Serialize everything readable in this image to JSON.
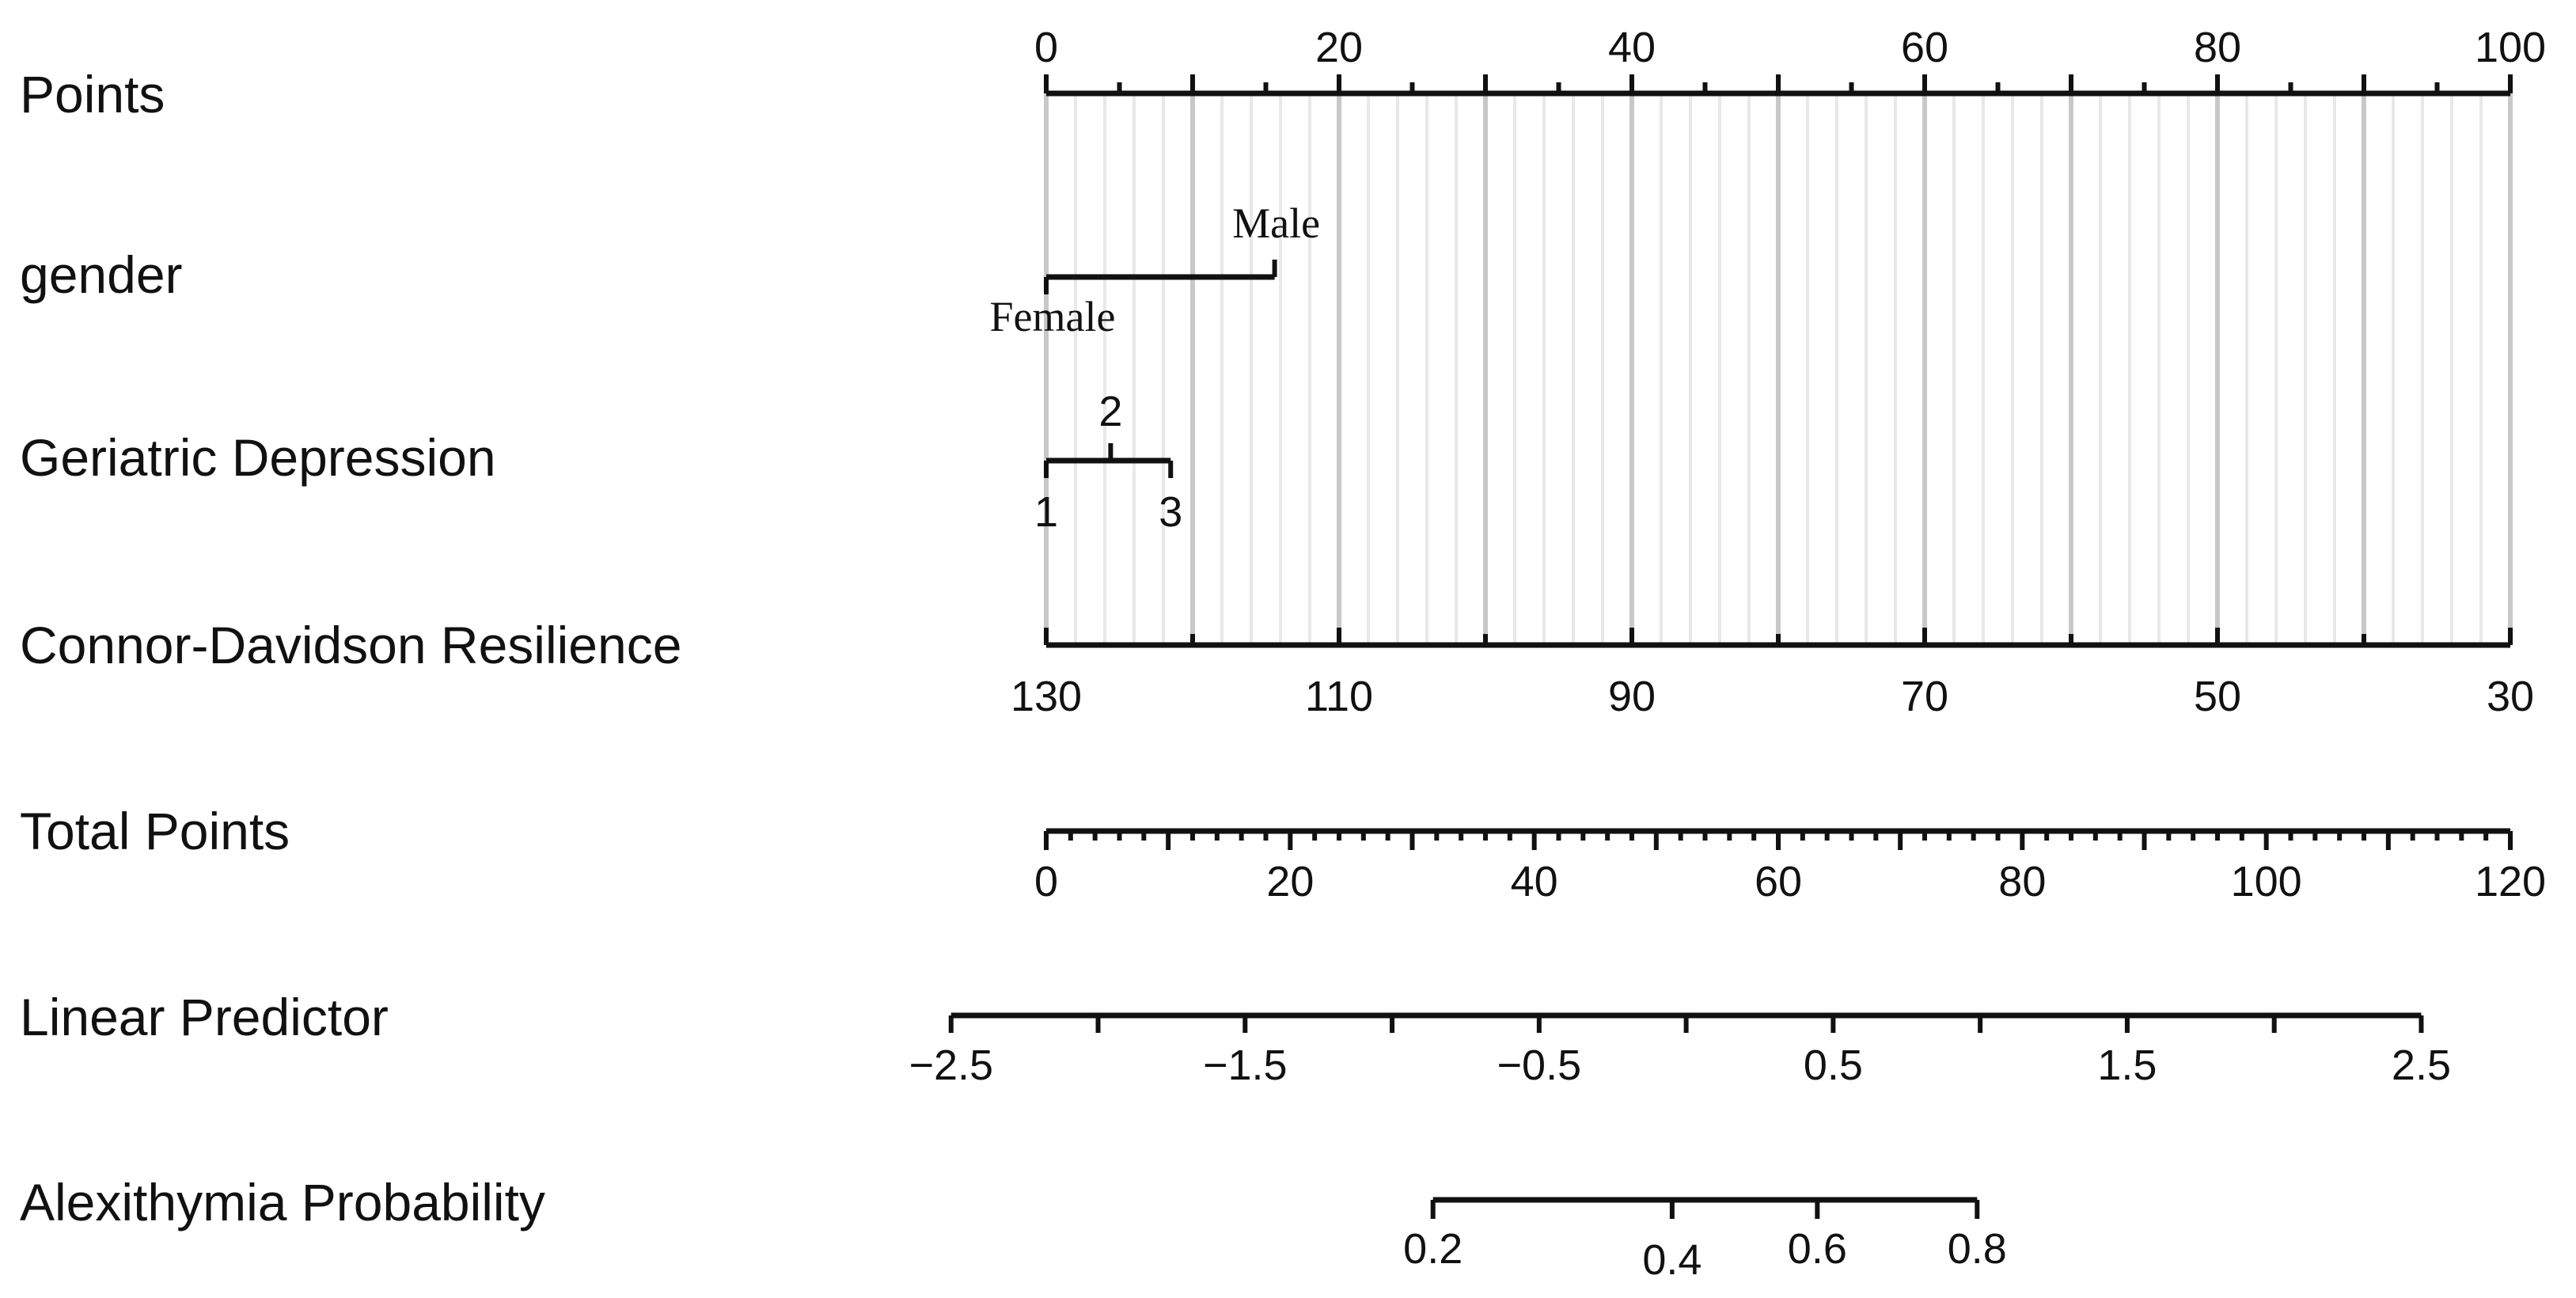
{
  "chart_data": {
    "type": "nomogram",
    "rows": [
      {
        "label": "Points"
      },
      {
        "label": "gender",
        "categories": [
          {
            "name": "Female",
            "points": 0
          },
          {
            "name": "Male",
            "points": 15.6
          }
        ]
      },
      {
        "label": "Geriatric Depression",
        "categories": [
          {
            "name": "1",
            "points": 0
          },
          {
            "name": "2",
            "points": 4.4
          },
          {
            "name": "3",
            "points": 8.5
          }
        ]
      },
      {
        "label": "Connor-Davidson Resilience"
      },
      {
        "label": "Total Points"
      },
      {
        "label": "Linear Predictor"
      },
      {
        "label": "Alexithymia Probability"
      }
    ],
    "points_axis": {
      "min": 0,
      "max": 100,
      "tick_labels": [
        "0",
        "20",
        "40",
        "60",
        "80",
        "100"
      ],
      "minor_step": 2,
      "gridlines": true
    },
    "resilience_axis": {
      "min": 130,
      "max": 30,
      "tick_labels": [
        "130",
        "110",
        "90",
        "70",
        "50",
        "30"
      ],
      "minor_step": 10
    },
    "total_points_axis": {
      "min": 0,
      "max": 120,
      "tick_labels": [
        "0",
        "20",
        "40",
        "60",
        "80",
        "100",
        "120"
      ],
      "minor_step": 2
    },
    "linear_predictor_axis": {
      "min": -2.5,
      "max": 2.5,
      "tick_labels": [
        "−2.5",
        "−1.5",
        "−0.5",
        "0.5",
        "1.5",
        "2.5"
      ],
      "minor_step": 0.5,
      "total_points_at_min": -7.8,
      "total_points_at_max": 112.7
    },
    "probability_axis": {
      "tick_labels": [
        "0.2",
        "0.4",
        "0.6",
        "0.8"
      ],
      "probabilities": [
        0.2,
        0.4,
        0.6,
        0.8
      ],
      "total_points_at": [
        31.7,
        51.3,
        63.2,
        76.3
      ]
    }
  }
}
